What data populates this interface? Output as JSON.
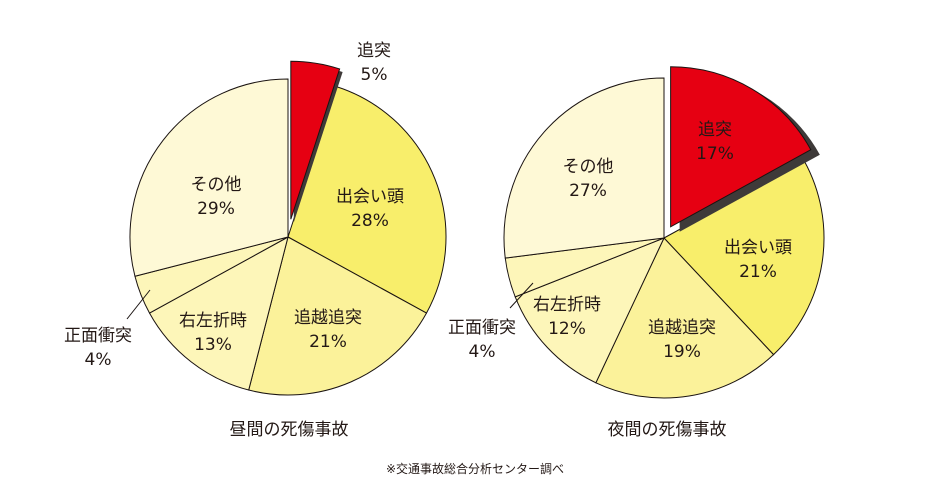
{
  "source_note": "※交通事故総合分析センター調べ",
  "colors": {
    "highlight": "#e60012",
    "shadow": "#3e3a39",
    "stroke": "#1a1311",
    "text": "#231815",
    "bright_yellow": "#f8ee6b",
    "mid_yellow": "#fbf29a",
    "light_yellow": "#fdf6b9",
    "pale_yellow": "#fef9d6"
  },
  "chart_data": [
    {
      "type": "pie",
      "title": "昼間の死傷事故",
      "slices": [
        {
          "label": "追突",
          "value": 5,
          "display": "5%",
          "color": "#e60012",
          "exploded": true
        },
        {
          "label": "出会い頭",
          "value": 28,
          "display": "28%",
          "color": "#f8ee6b"
        },
        {
          "label": "追越追突",
          "value": 21,
          "display": "21%",
          "color": "#fbf29a"
        },
        {
          "label": "右左折時",
          "value": 13,
          "display": "13%",
          "color": "#fdf6b9"
        },
        {
          "label": "正面衝突",
          "value": 4,
          "display": "4%",
          "color": "#fdf6b9"
        },
        {
          "label": "その他",
          "value": 29,
          "display": "29%",
          "color": "#fef9d6"
        }
      ]
    },
    {
      "type": "pie",
      "title": "夜間の死傷事故",
      "slices": [
        {
          "label": "追突",
          "value": 17,
          "display": "17%",
          "color": "#e60012",
          "exploded": true
        },
        {
          "label": "出会い頭",
          "value": 21,
          "display": "21%",
          "color": "#f8ee6b"
        },
        {
          "label": "追越追突",
          "value": 19,
          "display": "19%",
          "color": "#fbf29a"
        },
        {
          "label": "右左折時",
          "value": 12,
          "display": "12%",
          "color": "#fdf6b9"
        },
        {
          "label": "正面衝突",
          "value": 4,
          "display": "4%",
          "color": "#fdf6b9"
        },
        {
          "label": "その他",
          "value": 27,
          "display": "27%",
          "color": "#fef9d6"
        }
      ]
    }
  ]
}
